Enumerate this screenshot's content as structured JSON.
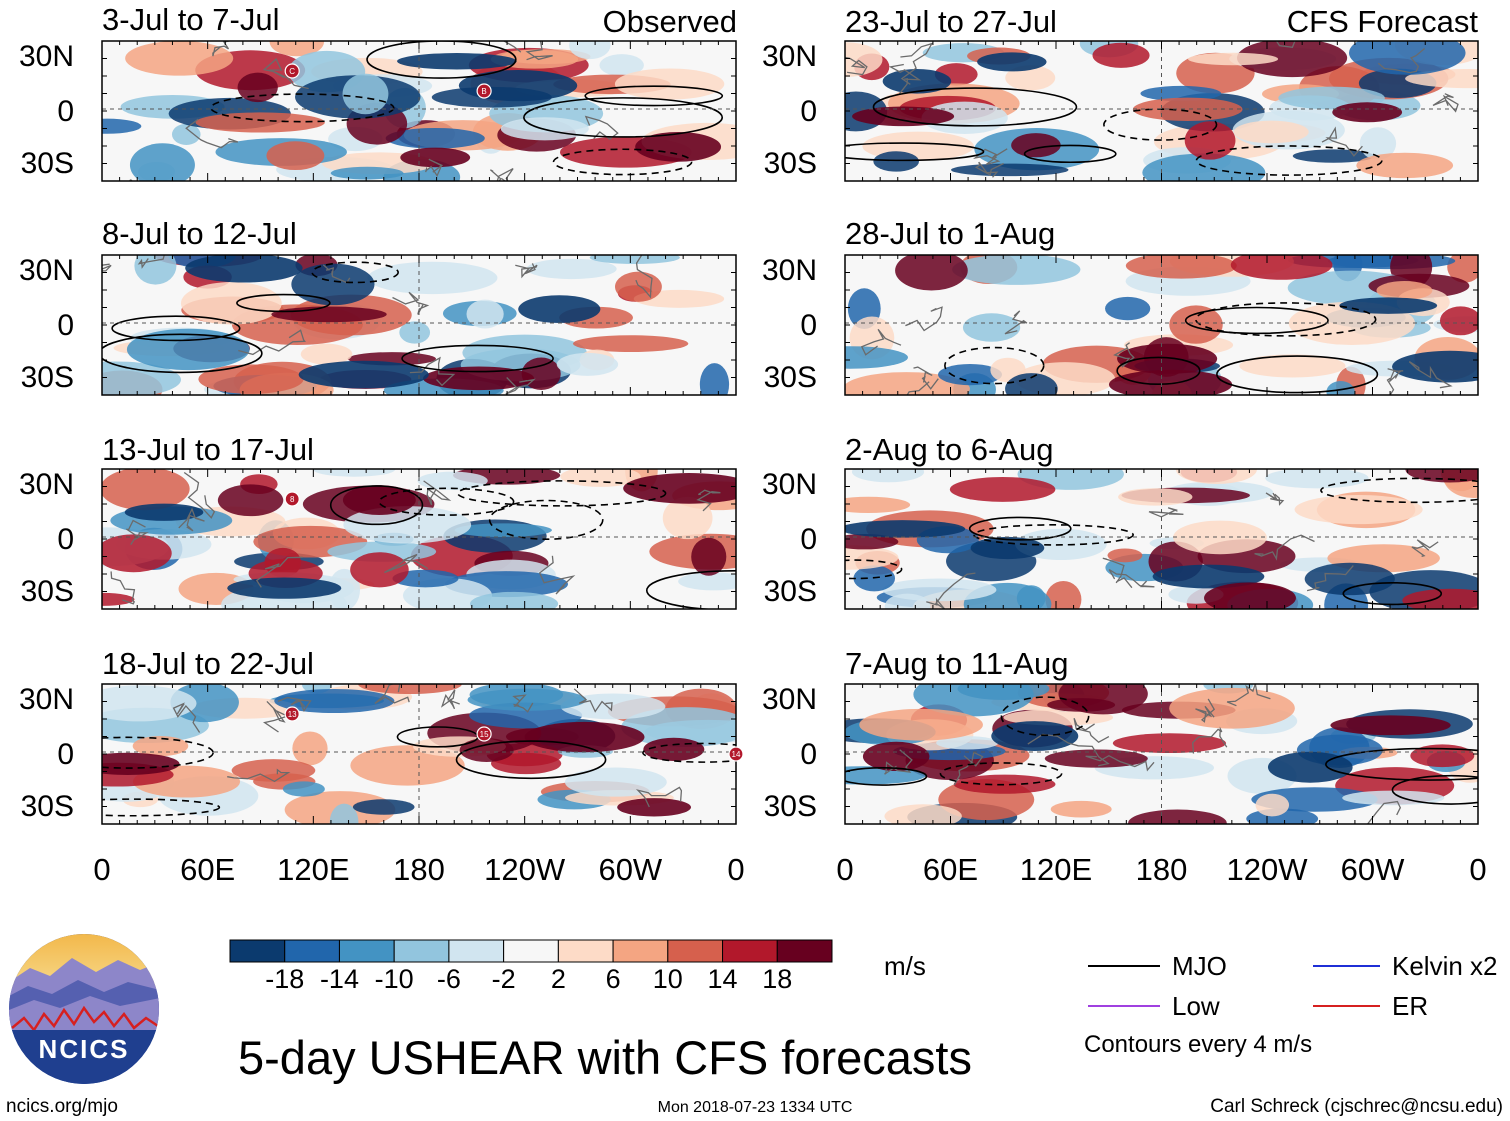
{
  "figure": {
    "title": "5-day USHEAR with CFS forecasts",
    "url": "ncics.org/mjo",
    "timestamp": "Mon 2018-07-23 1334 UTC",
    "credit": "Carl Schreck (cjschrec@ncsu.edu)",
    "logo_text": "NCICS",
    "left_column_label": "Observed",
    "right_column_label": "CFS Forecast"
  },
  "axes": {
    "y_ticks": [
      "30N",
      "0",
      "30S"
    ],
    "x_ticks": [
      "0",
      "60E",
      "120E",
      "180",
      "120W",
      "60W",
      "0"
    ]
  },
  "panels": [
    {
      "period": "3-Jul to 7-Jul",
      "source": "Observed",
      "storms": [
        "C",
        "B"
      ]
    },
    {
      "period": "8-Jul to 12-Jul",
      "source": "Observed",
      "storms": []
    },
    {
      "period": "13-Jul to 17-Jul",
      "source": "Observed",
      "storms": [
        "8"
      ]
    },
    {
      "period": "18-Jul to 22-Jul",
      "source": "Observed",
      "storms": [
        "13",
        "15",
        "14"
      ]
    },
    {
      "period": "23-Jul to 27-Jul",
      "source": "CFS Forecast",
      "storms": []
    },
    {
      "period": "28-Jul to 1-Aug",
      "source": "CFS Forecast",
      "storms": []
    },
    {
      "period": "2-Aug to 6-Aug",
      "source": "CFS Forecast",
      "storms": []
    },
    {
      "period": "7-Aug to 11-Aug",
      "source": "CFS Forecast",
      "storms": []
    }
  ],
  "colorbar": {
    "units": "m/s",
    "tick_labels": [
      "-18",
      "-14",
      "-10",
      "-6",
      "-2",
      "2",
      "6",
      "10",
      "14",
      "18"
    ],
    "colors": [
      "#0b3a6e",
      "#2166ac",
      "#4393c3",
      "#92c5de",
      "#d1e5f0",
      "#f7f7f7",
      "#fddbc7",
      "#f4a582",
      "#d6604d",
      "#b2182b",
      "#67001f"
    ]
  },
  "legend": {
    "items": [
      {
        "label": "MJO",
        "color": "#000000"
      },
      {
        "label": "Kelvin x2",
        "color": "#1f2fd6"
      },
      {
        "label": "Low",
        "color": "#a040e0"
      },
      {
        "label": "ER",
        "color": "#d62020"
      }
    ],
    "note": "Contours every 4 m/s"
  }
}
